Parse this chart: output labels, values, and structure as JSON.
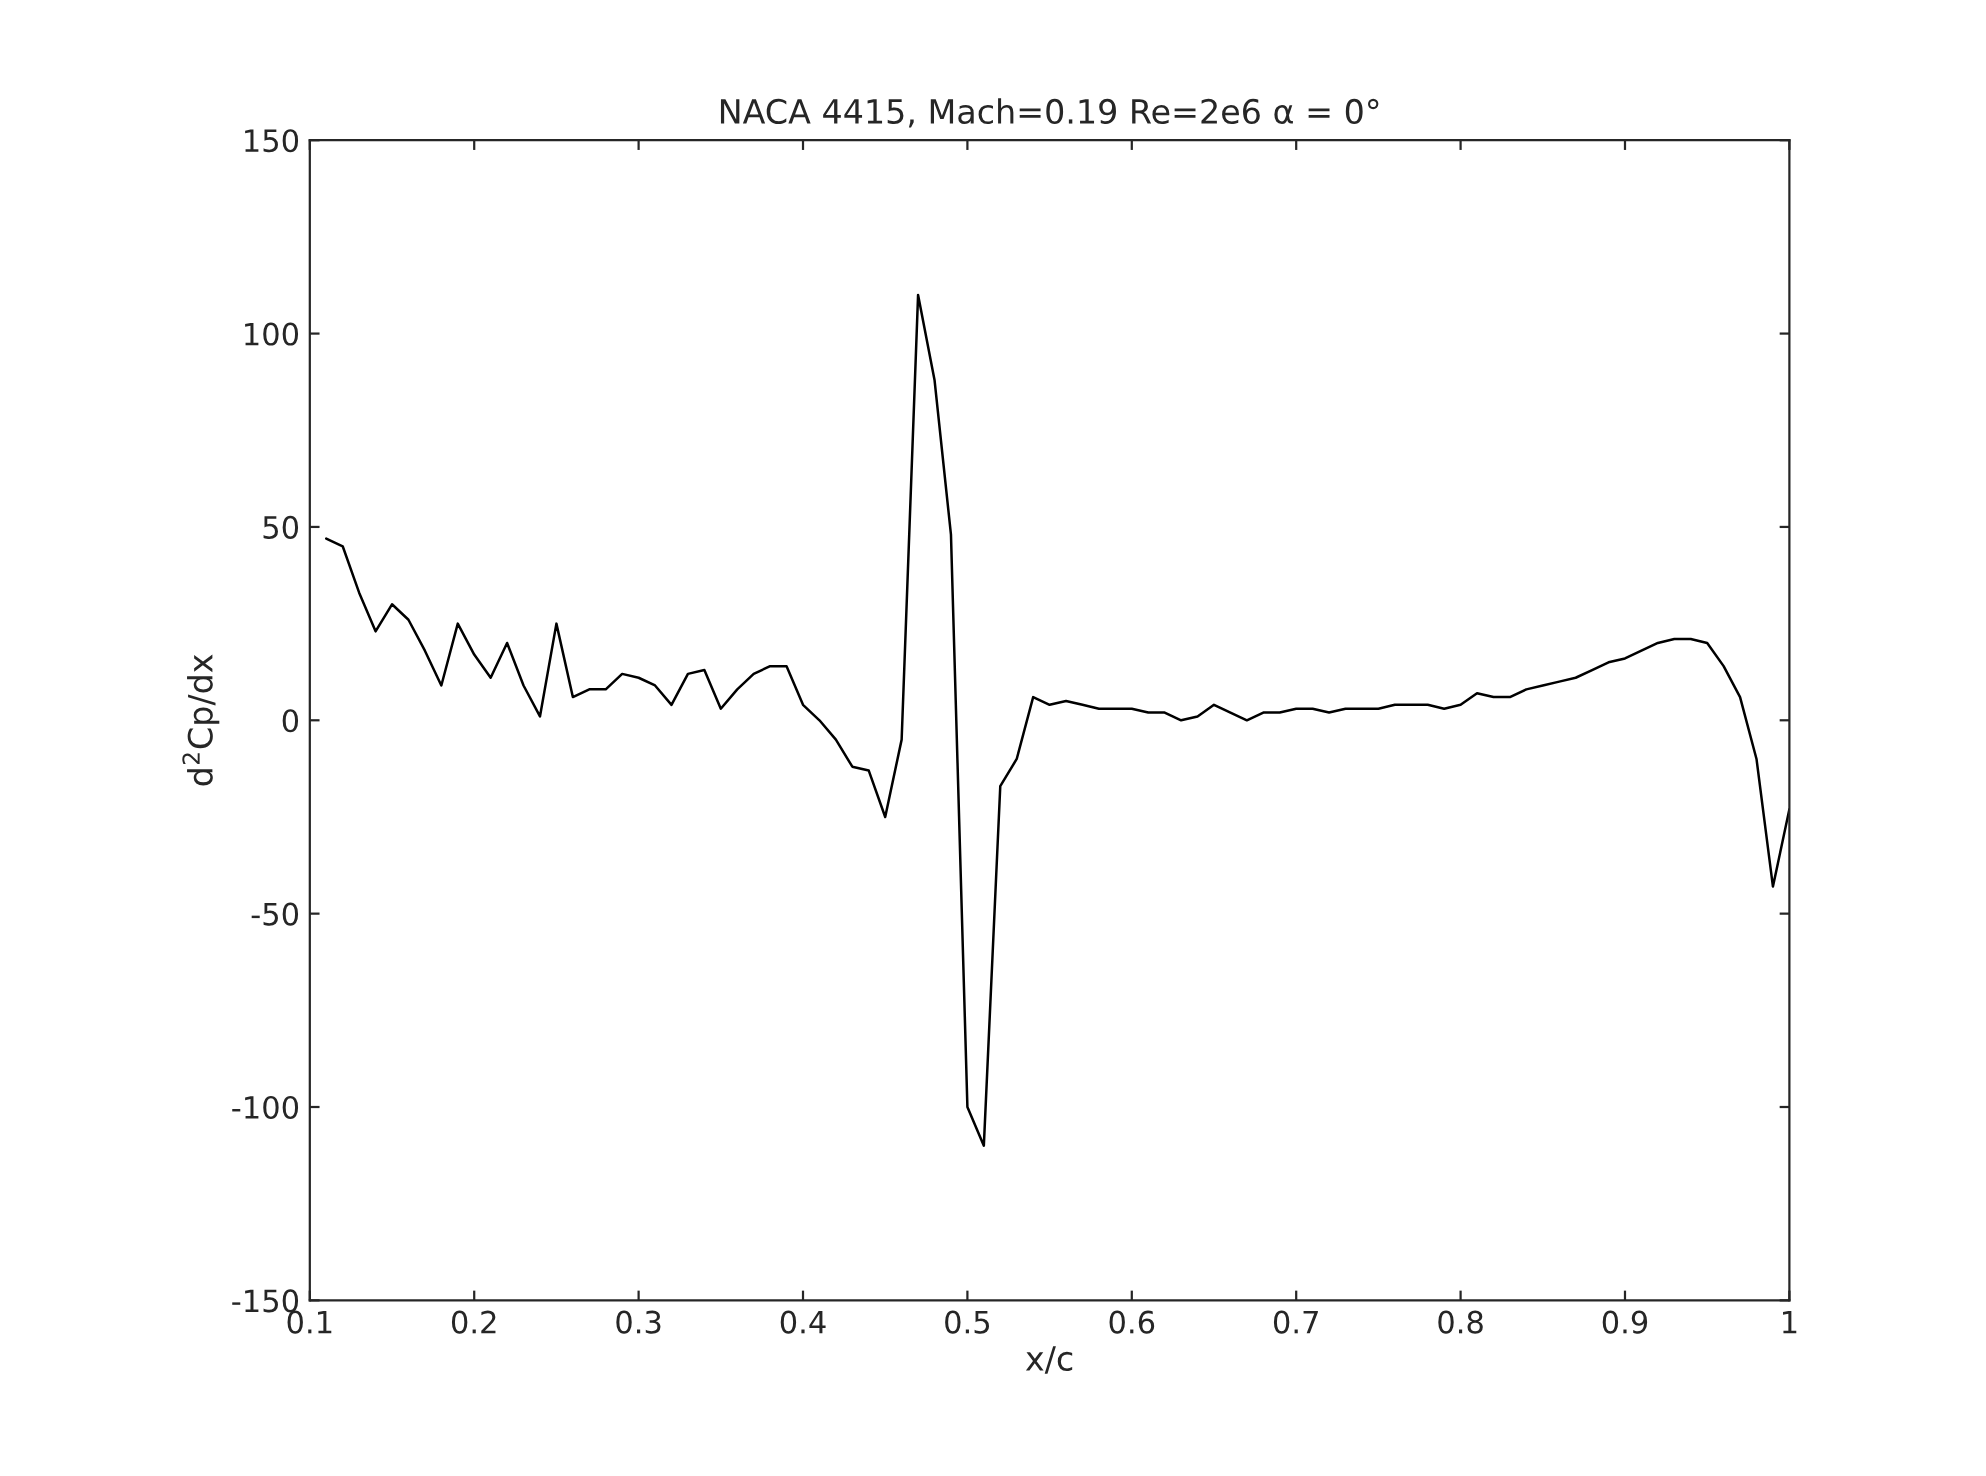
{
  "chart_data": {
    "type": "line",
    "title": "NACA 4415, Mach=0.19 Re=2e6 α = 0°",
    "xlabel": "x/c",
    "ylabel": "d$^{2}$Cp/dx",
    "x": [
      0.11,
      0.12,
      0.13,
      0.14,
      0.15,
      0.16,
      0.17,
      0.18,
      0.19,
      0.2,
      0.21,
      0.22,
      0.23,
      0.24,
      0.25,
      0.26,
      0.27,
      0.28,
      0.29,
      0.3,
      0.31,
      0.32,
      0.33,
      0.34,
      0.35,
      0.36,
      0.37,
      0.38,
      0.39,
      0.4,
      0.41,
      0.42,
      0.43,
      0.44,
      0.45,
      0.46,
      0.47,
      0.48,
      0.49,
      0.5,
      0.51,
      0.52,
      0.53,
      0.54,
      0.55,
      0.56,
      0.57,
      0.58,
      0.59,
      0.6,
      0.61,
      0.62,
      0.63,
      0.64,
      0.65,
      0.66,
      0.67,
      0.68,
      0.69,
      0.7,
      0.71,
      0.72,
      0.73,
      0.74,
      0.75,
      0.76,
      0.77,
      0.78,
      0.79,
      0.8,
      0.81,
      0.82,
      0.83,
      0.84,
      0.85,
      0.86,
      0.87,
      0.88,
      0.89,
      0.9,
      0.91,
      0.92,
      0.93,
      0.94,
      0.95,
      0.96,
      0.97,
      0.98,
      0.99,
      1.0
    ],
    "series": [
      {
        "color": "#000000",
        "values": [
          47,
          45,
          33,
          23,
          30,
          26,
          18,
          9,
          25,
          17,
          11,
          20,
          9,
          1,
          25,
          6,
          8,
          8,
          12,
          11,
          9,
          4,
          12,
          13,
          3,
          8,
          12,
          14,
          14,
          4,
          0,
          -5,
          -12,
          -13,
          -25,
          -5,
          110,
          88,
          48,
          -100,
          -110,
          -17,
          -10,
          6,
          4,
          5,
          4,
          3,
          3,
          3,
          2,
          2,
          0,
          1,
          4,
          2,
          0,
          2,
          2,
          3,
          3,
          2,
          3,
          3,
          3,
          4,
          4,
          4,
          3,
          4,
          7,
          6,
          6,
          8,
          9,
          10,
          11,
          13,
          15,
          16,
          18,
          20,
          21,
          21,
          20,
          14,
          6,
          -10,
          -43,
          -23
        ]
      }
    ],
    "xlim": [
      0.1,
      1
    ],
    "ylim": [
      -150,
      150
    ],
    "xticks": [
      0.1,
      0.2,
      0.3,
      0.4,
      0.5,
      0.6,
      0.7,
      0.8,
      0.9,
      {
        "value": 1,
        "label": "1"
      }
    ],
    "yticks": [
      -150,
      -100,
      -50,
      0,
      50,
      100,
      150
    ],
    "marker": "none",
    "line_style": "solid"
  }
}
